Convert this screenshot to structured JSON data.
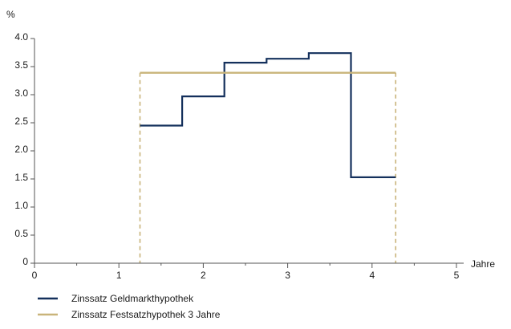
{
  "chart_data": {
    "type": "line",
    "ylabel": "%",
    "xlabel": "Jahre",
    "xlim": [
      0,
      5
    ],
    "ylim": [
      0,
      4.0
    ],
    "x_ticks": [
      "0",
      "1",
      "2",
      "3",
      "4",
      "5"
    ],
    "y_ticks": [
      "0",
      "0.5",
      "1.0",
      "1.5",
      "2.0",
      "2.5",
      "3.0",
      "3.5",
      "4.0"
    ],
    "grid": false,
    "legend_position": "bottom-left",
    "series": [
      {
        "name": "Zinssatz Geldmarkthypothek",
        "color": "#14305c",
        "style": "step",
        "x": [
          1.25,
          1.75,
          1.75,
          2.25,
          2.25,
          2.75,
          2.75,
          3.25,
          3.25,
          3.75,
          3.75,
          4.28
        ],
        "y": [
          2.45,
          2.45,
          2.97,
          2.97,
          3.57,
          3.57,
          3.64,
          3.64,
          3.74,
          3.74,
          1.53,
          1.53
        ]
      },
      {
        "name": "Zinssatz Festsatzhypothek 3 Jahre",
        "color": "#c9b47a",
        "style": "solid",
        "x": [
          1.25,
          4.28
        ],
        "y": [
          3.39,
          3.39
        ]
      }
    ],
    "reference_lines": [
      {
        "x": 1.25,
        "color": "#c9b47a",
        "style": "dashed"
      },
      {
        "x": 4.28,
        "color": "#c9b47a",
        "style": "dashed"
      }
    ]
  }
}
